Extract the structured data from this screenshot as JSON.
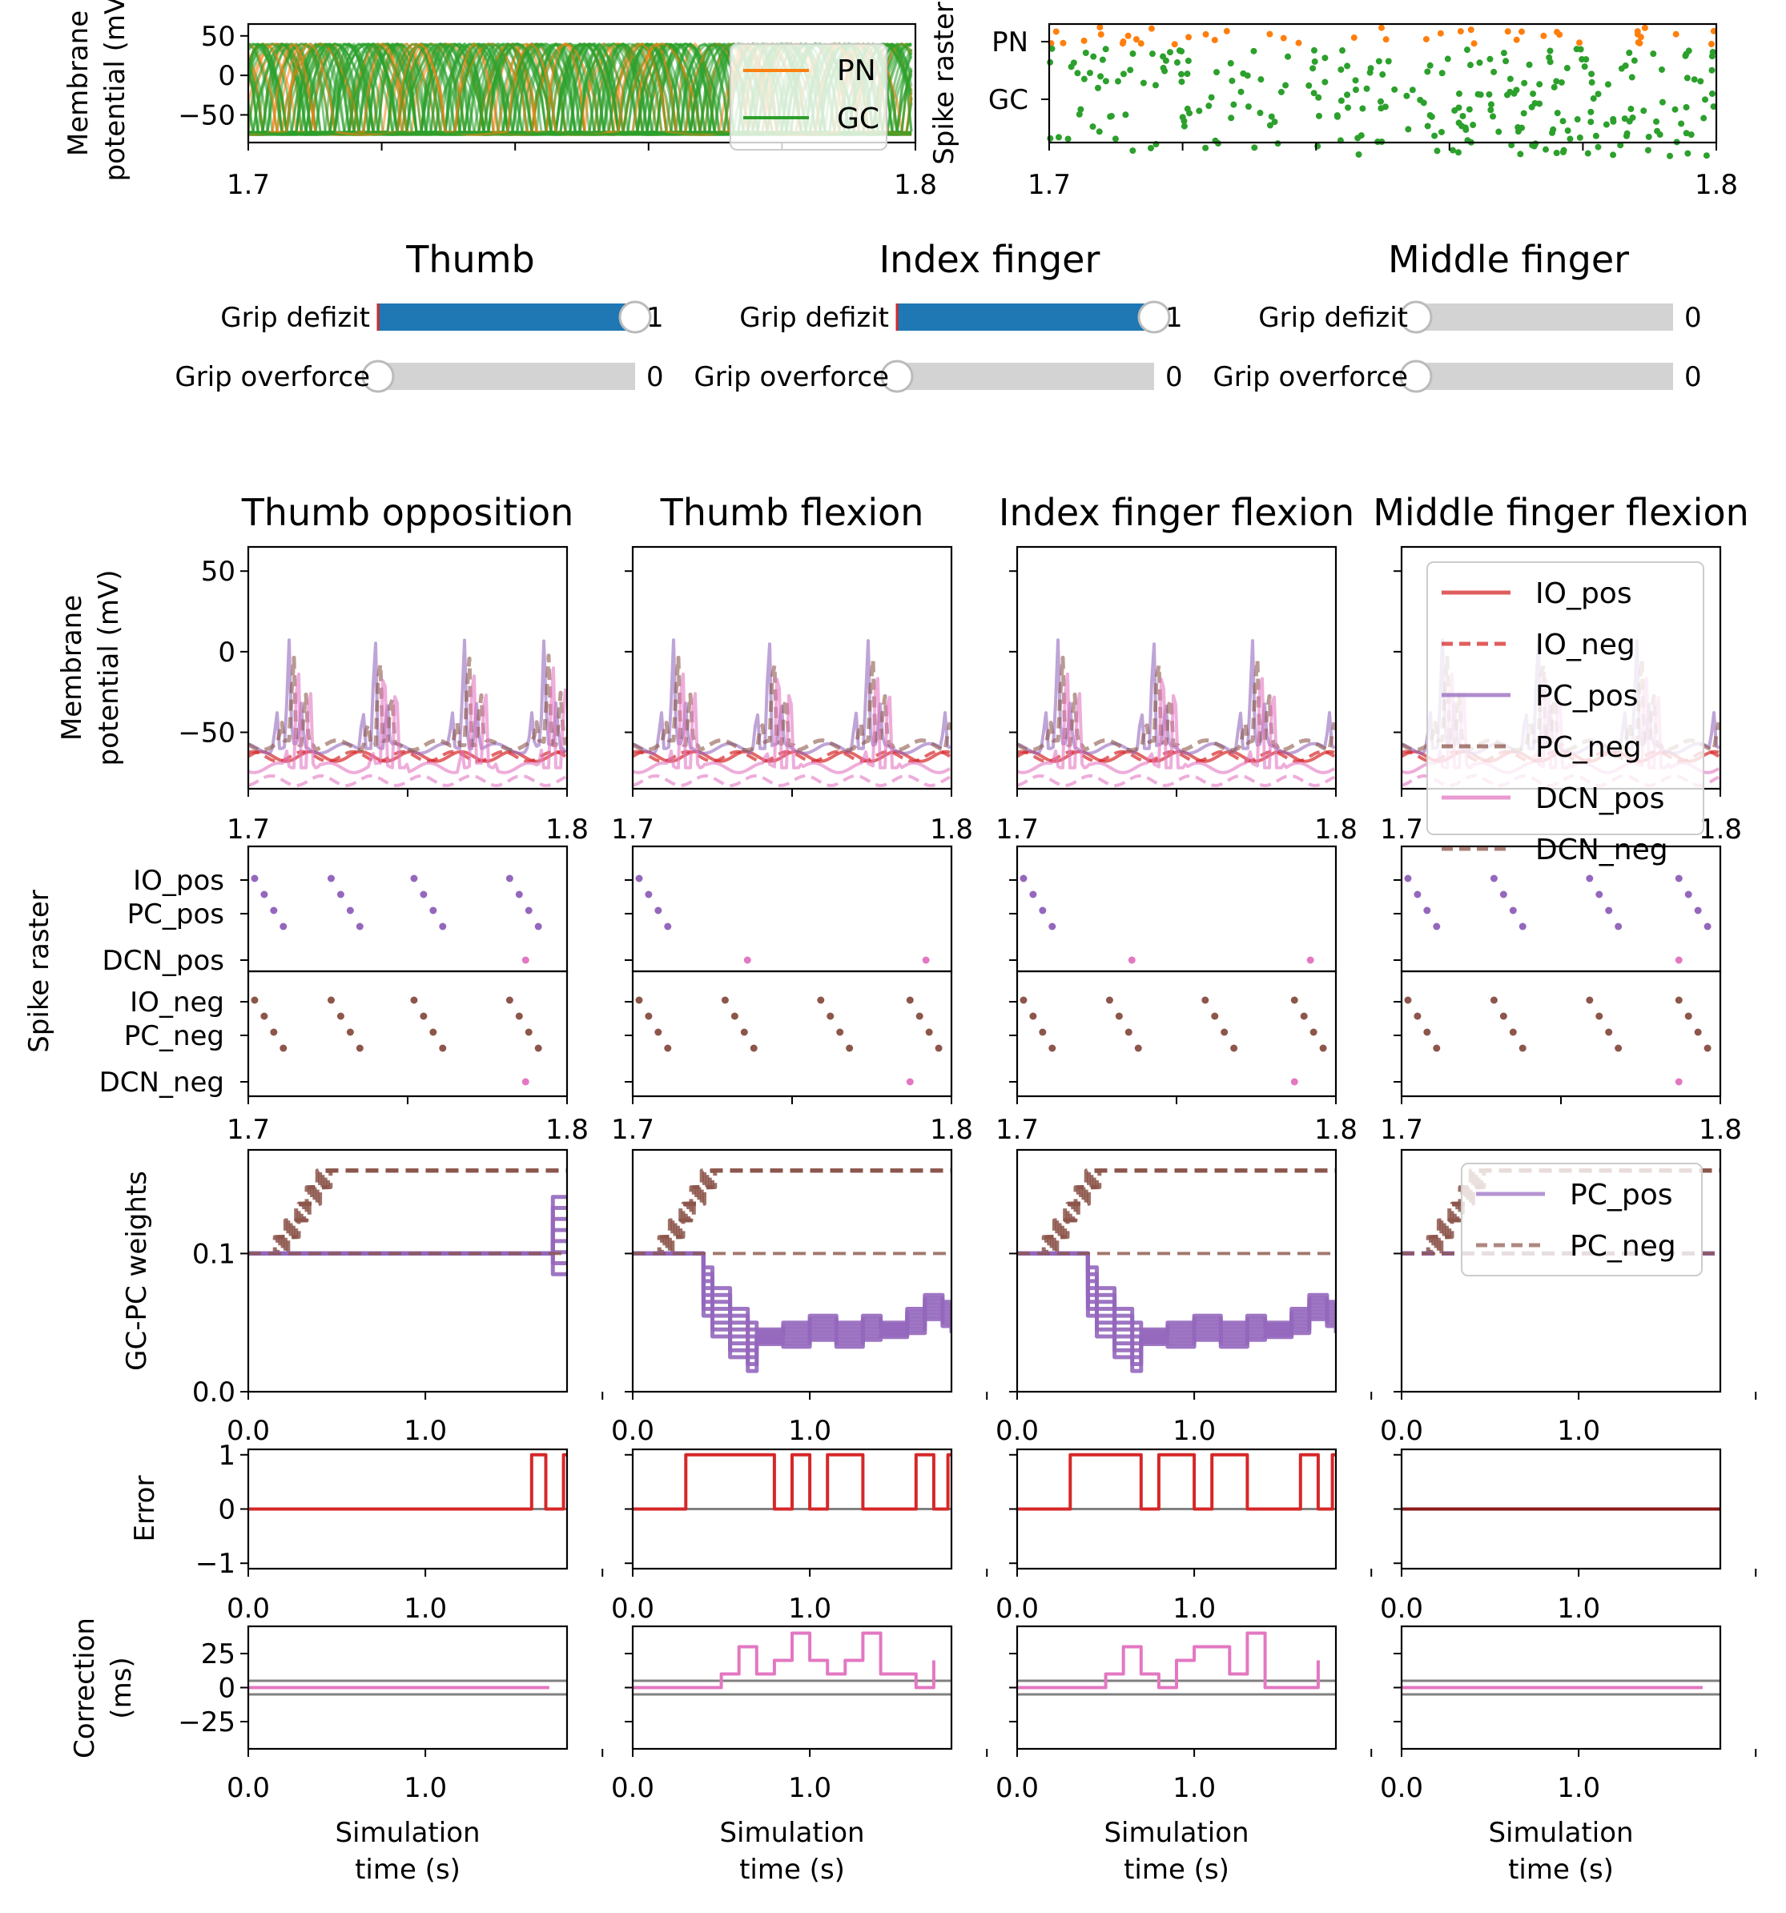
{
  "colors": {
    "PN": "#ff7f0e",
    "GC": "#2ca02c",
    "IO": "#d62728",
    "PC": "#9467bd",
    "DCN": "#e377c2",
    "neg": "#8c564b",
    "slider_fill": "#1f77b4",
    "slider_track": "#d3d3d3",
    "zero_line": "#808080"
  },
  "top": {
    "membrane": {
      "ylabel": "Membrane\npotential (mV)",
      "yticks": [
        "50",
        "0",
        "−50"
      ],
      "xticks": [
        "1.7",
        "1.8"
      ],
      "legend": [
        "PN",
        "GC"
      ]
    },
    "raster": {
      "ylabel": "Spike raster",
      "yticks": [
        "PN",
        "GC"
      ],
      "xticks": [
        "1.7",
        "1.8"
      ]
    }
  },
  "sliders": [
    {
      "title": "Thumb",
      "rows": [
        {
          "label": "Grip defizit",
          "value": 1,
          "value_text": "1"
        },
        {
          "label": "Grip overforce",
          "value": 0,
          "value_text": "0"
        }
      ]
    },
    {
      "title": "Index finger",
      "rows": [
        {
          "label": "Grip defizit",
          "value": 1,
          "value_text": "1"
        },
        {
          "label": "Grip overforce",
          "value": 0,
          "value_text": "0"
        }
      ]
    },
    {
      "title": "Middle finger",
      "rows": [
        {
          "label": "Grip defizit",
          "value": 0,
          "value_text": "0"
        },
        {
          "label": "Grip overforce",
          "value": 0,
          "value_text": "0"
        }
      ]
    }
  ],
  "columns": [
    "Thumb opposition",
    "Thumb flexion",
    "Index finger flexion",
    "Middle finger flexion"
  ],
  "chart_data": {
    "type": "line",
    "membrane": {
      "ylabel": "Membrane\npotential (mV)",
      "yticks": [
        "50",
        "0",
        "−50"
      ],
      "xticks": [
        "1.7",
        "1.8"
      ],
      "ylim": [
        -85,
        65
      ],
      "legend": [
        "IO_pos",
        "IO_neg",
        "PC_pos",
        "PC_neg",
        "DCN_pos",
        "DCN_neg"
      ]
    },
    "raster": {
      "ylabel": "Spike raster",
      "pos_labels": [
        "IO_pos",
        "PC_pos",
        "DCN_pos"
      ],
      "neg_labels": [
        "IO_neg",
        "PC_neg",
        "DCN_neg"
      ],
      "xticks": [
        "1.7",
        "1.8"
      ]
    },
    "weights": {
      "ylabel": "GC-PC weights",
      "yticks": [
        "0.1",
        "0.0"
      ],
      "xticks": [
        "0.0",
        "1.0"
      ],
      "legend": [
        "PC_pos",
        "PC_neg"
      ],
      "ylim": [
        0.0,
        0.175
      ],
      "xlim": [
        0.0,
        1.8
      ]
    },
    "error": {
      "ylabel": "Error",
      "yticks": [
        "1",
        "0",
        "−1"
      ],
      "xticks": [
        "0.0",
        "1.0"
      ],
      "ylim": [
        -1.1,
        1.1
      ],
      "xlim": [
        0.0,
        1.8
      ]
    },
    "correction": {
      "ylabel": "Correction\n(ms)",
      "yticks": [
        "25",
        "0",
        "−25"
      ],
      "xticks": [
        "0.0",
        "1.0"
      ],
      "ylim": [
        -45,
        45
      ],
      "xlim": [
        0.0,
        1.8
      ]
    },
    "xlabel": "Simulation\ntime (s)",
    "error_series": [
      {
        "column": "Thumb opposition",
        "steps": [
          [
            0,
            0
          ],
          [
            1.6,
            1
          ],
          [
            1.68,
            0
          ],
          [
            1.78,
            1
          ]
        ]
      },
      {
        "column": "Thumb flexion",
        "steps": [
          [
            0,
            0
          ],
          [
            0.3,
            1
          ],
          [
            0.8,
            0
          ],
          [
            0.9,
            1
          ],
          [
            1.0,
            0
          ],
          [
            1.1,
            1
          ],
          [
            1.3,
            0
          ],
          [
            1.6,
            1
          ],
          [
            1.7,
            0
          ],
          [
            1.78,
            1
          ]
        ]
      },
      {
        "column": "Index finger flexion",
        "steps": [
          [
            0,
            0
          ],
          [
            0.3,
            1
          ],
          [
            0.7,
            0
          ],
          [
            0.8,
            1
          ],
          [
            1.0,
            0
          ],
          [
            1.1,
            1
          ],
          [
            1.3,
            0
          ],
          [
            1.6,
            1
          ],
          [
            1.7,
            0
          ],
          [
            1.78,
            1
          ]
        ]
      },
      {
        "column": "Middle finger flexion",
        "steps": [
          [
            0,
            0
          ]
        ]
      }
    ],
    "correction_series": [
      {
        "column": "Thumb opposition",
        "steps": [
          [
            0,
            0
          ],
          [
            1.7,
            0
          ]
        ]
      },
      {
        "column": "Thumb flexion",
        "steps": [
          [
            0,
            0
          ],
          [
            0.5,
            10
          ],
          [
            0.6,
            30
          ],
          [
            0.7,
            10
          ],
          [
            0.8,
            20
          ],
          [
            0.9,
            40
          ],
          [
            1.0,
            20
          ],
          [
            1.1,
            10
          ],
          [
            1.2,
            20
          ],
          [
            1.3,
            40
          ],
          [
            1.4,
            10
          ],
          [
            1.6,
            0
          ],
          [
            1.7,
            20
          ]
        ]
      },
      {
        "column": "Index finger flexion",
        "steps": [
          [
            0,
            0
          ],
          [
            0.5,
            10
          ],
          [
            0.6,
            30
          ],
          [
            0.7,
            10
          ],
          [
            0.8,
            0
          ],
          [
            0.9,
            20
          ],
          [
            1.0,
            30
          ],
          [
            1.2,
            10
          ],
          [
            1.3,
            40
          ],
          [
            1.4,
            0
          ],
          [
            1.6,
            0
          ],
          [
            1.7,
            20
          ]
        ]
      },
      {
        "column": "Middle finger flexion",
        "steps": [
          [
            0,
            0
          ],
          [
            1.7,
            0
          ]
        ]
      }
    ]
  }
}
